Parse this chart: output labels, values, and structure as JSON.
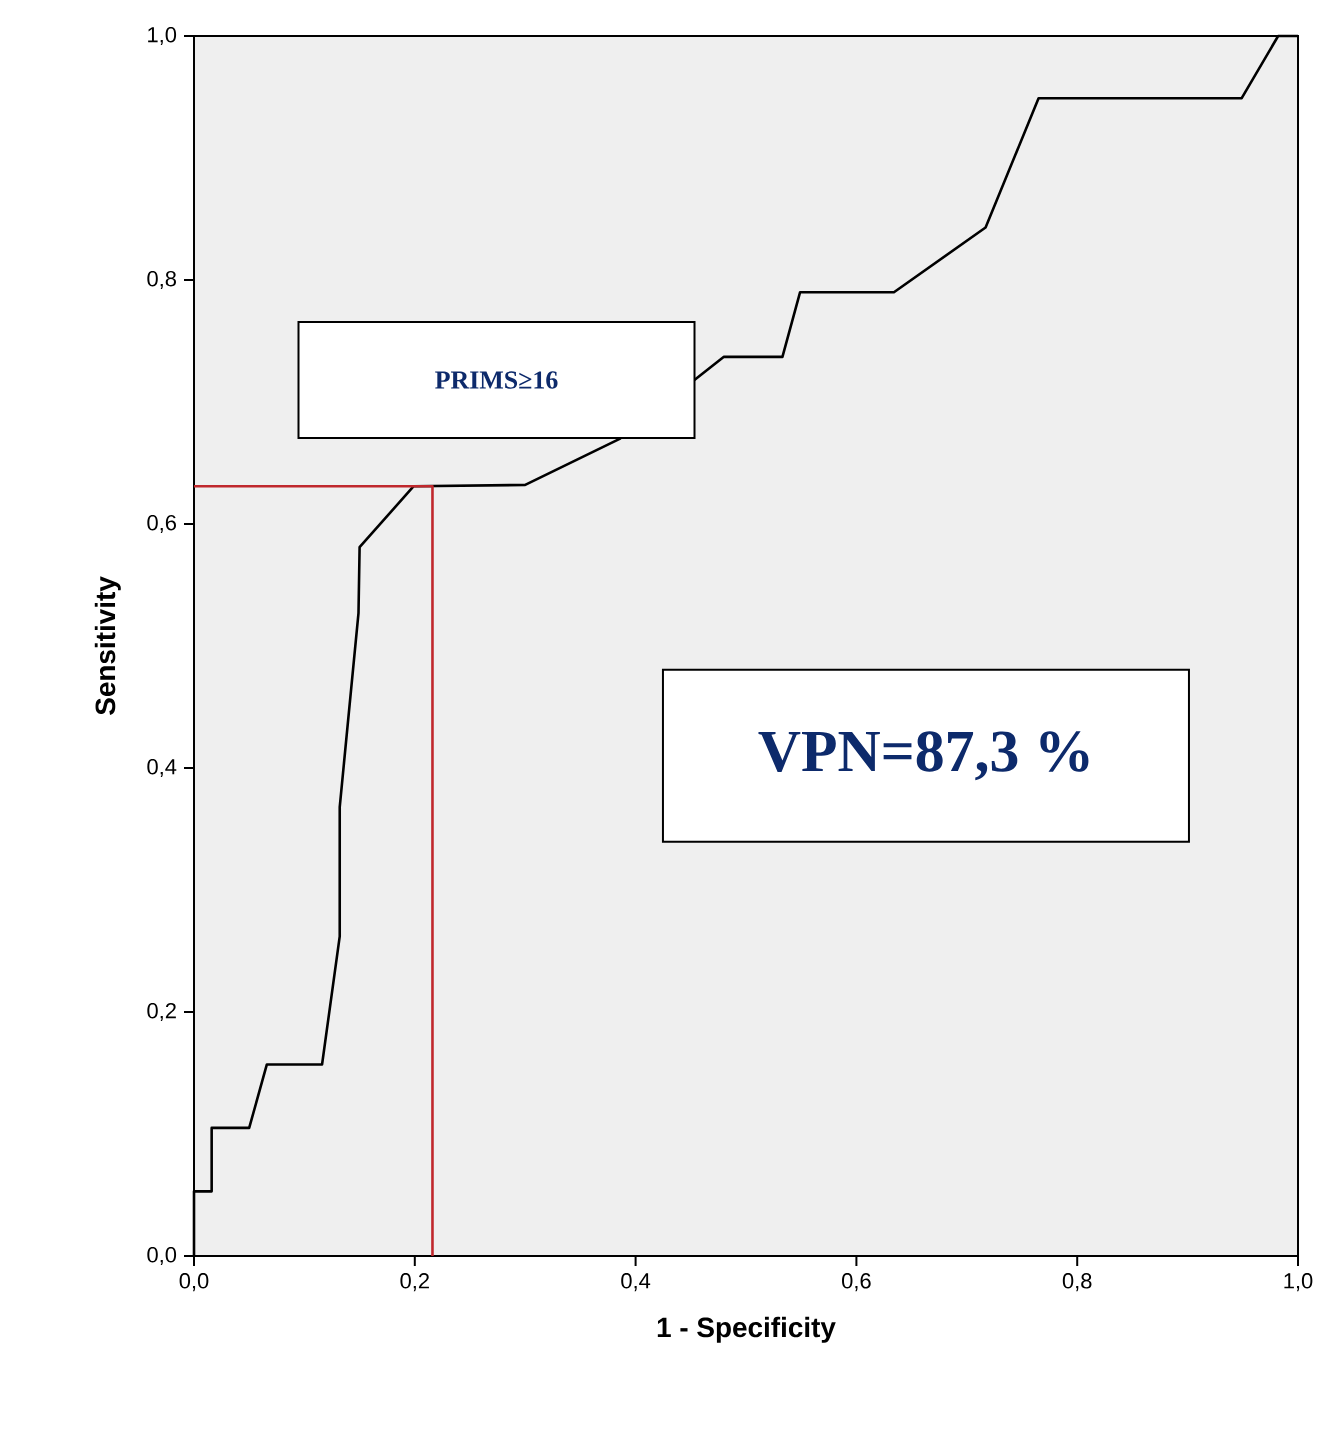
{
  "chart_data": {
    "type": "line",
    "xlabel": "1 - Specificity",
    "ylabel": "Sensitivity",
    "annotations": [
      "PRIMS≥16",
      "VPN=87,3 %"
    ],
    "series": [
      {
        "color": "#000000",
        "x": [
          0,
          0,
          0.016,
          0.016,
          0.05,
          0.066,
          0.116,
          0.132,
          0.132,
          0.149,
          0.15,
          0.199,
          0.3,
          0.386,
          0.48,
          0.533,
          0.549,
          0.634,
          0.717,
          0.765,
          0.949,
          0.982,
          1
        ],
        "values": [
          0,
          0.053,
          0.053,
          0.105,
          0.105,
          0.157,
          0.157,
          0.262,
          0.368,
          0.527,
          0.581,
          0.631,
          0.632,
          0.67,
          0.737,
          0.737,
          0.79,
          0.79,
          0.843,
          0.949,
          0.949,
          1,
          1
        ]
      },
      {
        "color": "#c0282d",
        "x": [
          0,
          0.216,
          0.216
        ],
        "values": [
          0.631,
          0.631,
          0
        ]
      }
    ],
    "xlim": [
      0,
      1
    ],
    "ylim": [
      0,
      1
    ],
    "xticks": [
      {
        "value": 0,
        "label": "0,0"
      },
      {
        "value": 0.2,
        "label": "0,2"
      },
      {
        "value": 0.4,
        "label": "0,4"
      },
      {
        "value": 0.6,
        "label": "0,6"
      },
      {
        "value": 0.8,
        "label": "0,8"
      },
      {
        "value": 1,
        "label": "1,0"
      }
    ],
    "yticks": [
      {
        "value": 0,
        "label": "0,0"
      },
      {
        "value": 0.2,
        "label": "0,2"
      },
      {
        "value": 0.4,
        "label": "0,4"
      },
      {
        "value": 0.6,
        "label": "0,6"
      },
      {
        "value": 0.8,
        "label": "0,8"
      },
      {
        "value": 1,
        "label": "1,0"
      }
    ],
    "grid": false,
    "marker": "none"
  }
}
